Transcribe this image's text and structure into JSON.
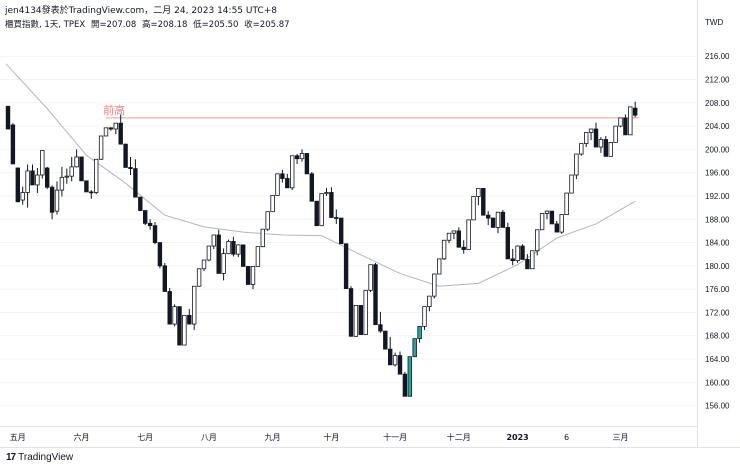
{
  "header": {
    "title": "jen4134發表於TradingView.com，二月 24, 2023 14:55 UTC+8",
    "symbol": "櫃買指數, 1天, TPEX",
    "open_label": "開=207.08",
    "high_label": "高=208.18",
    "low_label": "低=205.50",
    "close_label": "收=205.87"
  },
  "footer": {
    "brand": "TradingView",
    "logo_mark": "17"
  },
  "colors": {
    "up": "#000000",
    "down": "#000000",
    "ma": "#b2b5be",
    "resistance": "#ef9a9a",
    "annotation": "#f08080",
    "last": "#26a69a"
  },
  "chart_data": {
    "type": "candlestick",
    "currency": "TWD",
    "y_ticks": [
      156,
      160,
      164,
      168,
      172,
      176,
      180,
      184,
      188,
      192,
      196,
      200,
      204,
      208,
      212,
      216
    ],
    "ylim": [
      152.5,
      220.5
    ],
    "x_ticks": [
      "五月",
      "六月",
      "七月",
      "八月",
      "九月",
      "十月",
      "十一月",
      "十二月",
      "2023",
      "6",
      "三月"
    ],
    "annotation": {
      "text": "前高",
      "value": 205.4
    },
    "last": {
      "open": 207.08,
      "high": 208.18,
      "low": 205.5,
      "close": 205.87
    },
    "ohlc": [
      [
        207.4,
        207.0,
        204.2,
        203.5
      ],
      [
        204.2,
        204.5,
        197.8,
        197.5
      ],
      [
        196.8,
        196.9,
        191.3,
        191.0
      ],
      [
        191.3,
        193.6,
        190.5,
        192.6
      ],
      [
        192.6,
        197.4,
        190.0,
        196.3
      ],
      [
        196.3,
        197.4,
        194.1,
        193.9
      ],
      [
        193.9,
        196.8,
        192.5,
        195.6
      ],
      [
        195.6,
        199.2,
        195.0,
        199.8
      ],
      [
        196.8,
        197.0,
        193.2,
        193.5
      ],
      [
        193.5,
        193.8,
        188.0,
        189.2
      ],
      [
        189.4,
        194.5,
        188.8,
        193.0
      ],
      [
        193.0,
        197.0,
        191.9,
        195.2
      ],
      [
        195.4,
        196.7,
        194.1,
        195.4
      ],
      [
        195.4,
        198.7,
        194.5,
        197.0
      ],
      [
        197.0,
        200.0,
        196.9,
        198.7
      ],
      [
        198.7,
        197.4,
        195.1,
        194.6
      ],
      [
        194.6,
        194.3,
        193.9,
        192.7
      ],
      [
        192.7,
        193.0,
        191.5,
        192.6
      ],
      [
        192.6,
        197.6,
        192.3,
        198.3
      ],
      [
        198.3,
        201.5,
        198.2,
        202.3
      ],
      [
        202.3,
        202.5,
        202.4,
        203.7
      ],
      [
        203.7,
        203.8,
        203.2,
        203.5
      ],
      [
        203.5,
        204.5,
        202.6,
        204.5
      ],
      [
        204.5,
        206.0,
        201.4,
        200.9
      ],
      [
        200.9,
        201.0,
        197.4,
        196.9
      ],
      [
        196.9,
        198.7,
        195.6,
        196.7
      ],
      [
        196.7,
        198.3,
        192.3,
        191.8
      ],
      [
        191.8,
        191.6,
        189.4,
        189.5
      ],
      [
        189.5,
        189.3,
        187.0,
        187.3
      ],
      [
        187.3,
        188.0,
        186.2,
        186.9
      ],
      [
        186.9,
        187.5,
        183.7,
        184.0
      ],
      [
        184.0,
        183.9,
        179.6,
        180.0
      ],
      [
        180.0,
        180.5,
        176.0,
        175.6
      ],
      [
        175.6,
        176.2,
        170.5,
        170.0
      ],
      [
        170.0,
        173.4,
        169.6,
        173.0
      ],
      [
        173.0,
        172.9,
        167.0,
        166.4
      ],
      [
        166.4,
        170.9,
        167.6,
        171.5
      ],
      [
        171.5,
        172.6,
        170.4,
        170.0
      ],
      [
        170.0,
        175.6,
        169.0,
        176.5
      ],
      [
        176.5,
        178.7,
        176.4,
        179.5
      ],
      [
        179.5,
        180.1,
        179.1,
        181.0
      ],
      [
        181.0,
        182.3,
        180.8,
        183.4
      ],
      [
        183.4,
        184.3,
        182.9,
        185.3
      ],
      [
        185.3,
        186.2,
        179.9,
        178.7
      ],
      [
        178.7,
        183.0,
        177.5,
        182.1
      ],
      [
        182.1,
        184.5,
        182.0,
        184.2
      ],
      [
        184.2,
        185.0,
        181.6,
        182.0
      ],
      [
        182.0,
        183.7,
        181.5,
        183.6
      ],
      [
        183.6,
        183.3,
        180.6,
        179.9
      ],
      [
        179.9,
        179.6,
        177.6,
        176.8
      ],
      [
        176.8,
        179.4,
        176.0,
        179.9
      ],
      [
        179.9,
        182.6,
        180.0,
        183.3
      ],
      [
        183.3,
        184.5,
        183.2,
        186.3
      ],
      [
        186.3,
        188.4,
        186.0,
        189.3
      ],
      [
        189.3,
        191.5,
        189.5,
        192.1
      ],
      [
        192.1,
        194.2,
        192.6,
        195.8
      ],
      [
        195.8,
        196.5,
        194.3,
        195.0
      ],
      [
        195.0,
        195.8,
        194.0,
        193.4
      ],
      [
        193.4,
        197.8,
        193.0,
        198.9
      ],
      [
        198.9,
        199.2,
        197.5,
        198.4
      ],
      [
        198.4,
        200.0,
        197.9,
        199.3
      ],
      [
        199.3,
        198.0,
        196.9,
        195.8
      ],
      [
        195.8,
        196.1,
        192.1,
        191.1
      ],
      [
        191.1,
        191.0,
        188.0,
        186.9
      ],
      [
        186.9,
        190.5,
        187.1,
        192.4
      ],
      [
        192.4,
        193.4,
        192.0,
        192.6
      ],
      [
        192.6,
        193.5,
        190.7,
        188.3
      ],
      [
        188.3,
        189.7,
        187.2,
        188.2
      ],
      [
        188.2,
        186.4,
        185.0,
        183.8
      ],
      [
        183.8,
        183.5,
        178.5,
        176.1
      ],
      [
        176.1,
        176.5,
        168.9,
        167.9
      ],
      [
        167.9,
        167.8,
        172.5,
        173.2
      ],
      [
        173.2,
        172.2,
        168.9,
        168.2
      ],
      [
        168.2,
        173.3,
        169.0,
        175.8
      ],
      [
        175.8,
        178.6,
        175.5,
        180.2
      ],
      [
        180.2,
        180.5,
        171.0,
        169.9
      ],
      [
        169.9,
        172.1,
        168.5,
        168.8
      ],
      [
        168.8,
        168.6,
        166.8,
        165.7
      ],
      [
        165.7,
        167.8,
        164.3,
        163.0
      ],
      [
        163.0,
        165.1,
        162.7,
        164.6
      ],
      [
        164.6,
        165.3,
        162.2,
        161.4
      ],
      [
        161.4,
        161.8,
        158.0,
        157.6
      ],
      [
        157.6,
        163.7,
        160.4,
        164.4
      ],
      [
        164.4,
        165.2,
        164.4,
        167.5
      ],
      [
        167.5,
        168.0,
        166.8,
        169.6
      ],
      [
        169.6,
        171.2,
        169.0,
        173.0
      ],
      [
        173.0,
        173.8,
        172.2,
        174.8
      ],
      [
        174.8,
        176.8,
        174.4,
        178.6
      ],
      [
        178.6,
        179.8,
        178.6,
        181.2
      ],
      [
        181.2,
        182.6,
        181.0,
        184.4
      ],
      [
        184.4,
        184.8,
        183.9,
        185.6
      ],
      [
        185.6,
        185.6,
        184.6,
        186.0
      ],
      [
        186.0,
        186.6,
        183.8,
        183.2
      ],
      [
        183.2,
        184.4,
        182.1,
        182.8
      ],
      [
        182.8,
        185.1,
        182.9,
        187.9
      ],
      [
        187.9,
        189.7,
        188.0,
        191.9
      ],
      [
        191.9,
        192.2,
        190.4,
        193.3
      ],
      [
        193.3,
        192.1,
        189.2,
        188.7
      ],
      [
        188.7,
        189.4,
        187.0,
        188.2
      ],
      [
        188.2,
        188.3,
        186.9,
        186.6
      ],
      [
        186.6,
        188.2,
        185.6,
        189.2
      ],
      [
        189.2,
        189.6,
        186.9,
        186.6
      ],
      [
        186.6,
        187.4,
        183.5,
        181.2
      ],
      [
        181.2,
        182.9,
        180.1,
        180.9
      ],
      [
        180.9,
        183.5,
        180.5,
        183.4
      ],
      [
        183.4,
        183.7,
        181.1,
        181.1
      ],
      [
        181.1,
        182.0,
        179.9,
        179.5
      ],
      [
        179.5,
        181.9,
        179.5,
        182.6
      ],
      [
        182.6,
        185.1,
        181.8,
        186.2
      ],
      [
        186.2,
        187.8,
        186.2,
        189.0
      ],
      [
        189.0,
        189.5,
        188.0,
        189.4
      ],
      [
        189.4,
        189.3,
        187.2,
        187.2
      ],
      [
        187.2,
        187.7,
        186.1,
        185.8
      ],
      [
        185.8,
        187.9,
        185.5,
        188.8
      ],
      [
        188.8,
        191.4,
        189.0,
        192.5
      ],
      [
        192.5,
        193.4,
        193.2,
        195.6
      ],
      [
        195.6,
        198.2,
        194.9,
        199.2
      ],
      [
        199.2,
        200.0,
        198.9,
        201.0
      ],
      [
        201.0,
        201.5,
        200.4,
        202.9
      ],
      [
        202.9,
        203.0,
        201.6,
        203.5
      ],
      [
        203.5,
        204.6,
        202.0,
        200.4
      ],
      [
        200.4,
        202.1,
        199.4,
        201.7
      ],
      [
        201.7,
        202.3,
        199.1,
        198.8
      ],
      [
        198.8,
        200.8,
        198.8,
        201.2
      ],
      [
        201.2,
        202.9,
        201.6,
        204.0
      ],
      [
        204.0,
        204.7,
        203.8,
        205.4
      ],
      [
        205.4,
        206.0,
        204.2,
        202.5
      ],
      [
        202.5,
        206.5,
        203.8,
        207.3
      ],
      [
        207.08,
        208.18,
        205.5,
        205.87
      ]
    ],
    "ma_x": [
      0,
      8,
      16,
      24,
      32,
      40,
      48,
      56,
      64,
      72,
      80,
      88,
      96,
      104,
      112,
      120,
      128
    ],
    "ma": [
      214.7,
      207.0,
      199.0,
      194.2,
      188.7,
      186.7,
      185.8,
      185.3,
      185.2,
      181.9,
      178.7,
      176.5,
      177.0,
      180.2,
      184.8,
      187.2,
      191.1
    ],
    "x_tick_index": [
      2,
      15,
      28,
      41,
      54,
      66,
      79,
      92,
      104,
      114,
      125
    ]
  }
}
